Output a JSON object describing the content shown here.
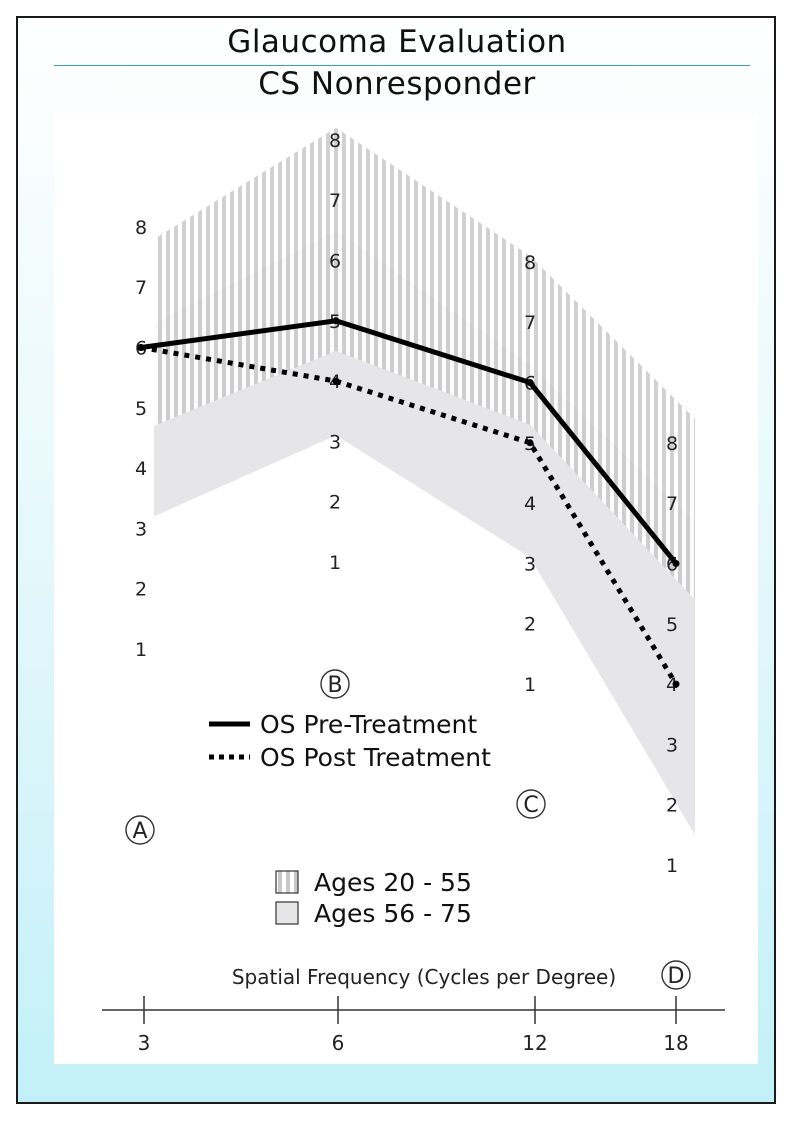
{
  "header": {
    "title": "Glaucoma Evaluation",
    "subtitle": "CS Nonresponder"
  },
  "chart_data": {
    "type": "line",
    "title": "Glaucoma Evaluation",
    "subtitle": "CS Nonresponder",
    "xlabel": "Spatial Frequency (Cycles per Degree)",
    "ylabel": "",
    "categories": [
      "3",
      "6",
      "12",
      "18"
    ],
    "category_badges": [
      "A",
      "B",
      "C",
      "D"
    ],
    "y_ticks": [
      "1",
      "2",
      "3",
      "4",
      "5",
      "6",
      "7",
      "8"
    ],
    "ylim": [
      1,
      8
    ],
    "series": [
      {
        "name": "OS Pre-Treatment",
        "style": "solid",
        "values": [
          6,
          5,
          6,
          6
        ]
      },
      {
        "name": "OS Post Treatment",
        "style": "dotted",
        "values": [
          6,
          4,
          5,
          4
        ]
      }
    ],
    "bands": [
      {
        "name": "Ages 20 - 55",
        "pattern": "vertical-stripes",
        "low": [
          4.7,
          4.5,
          5.3,
          5.4
        ],
        "high": [
          7.8,
          8.2,
          8.1,
          8.4
        ]
      },
      {
        "name": "Ages 56 - 75",
        "pattern": "solid-gray",
        "low": [
          3.2,
          3.1,
          3.1,
          1.5
        ],
        "high": [
          6.4,
          6.5,
          6.3,
          6.7
        ]
      }
    ],
    "legend_position": "center",
    "grid": false
  },
  "colors": {
    "stripe": "#c9c9c9",
    "band_fill": "#e6e6e8",
    "line": "#000000",
    "frame_gradient_bottom": "#c3f0f8"
  }
}
